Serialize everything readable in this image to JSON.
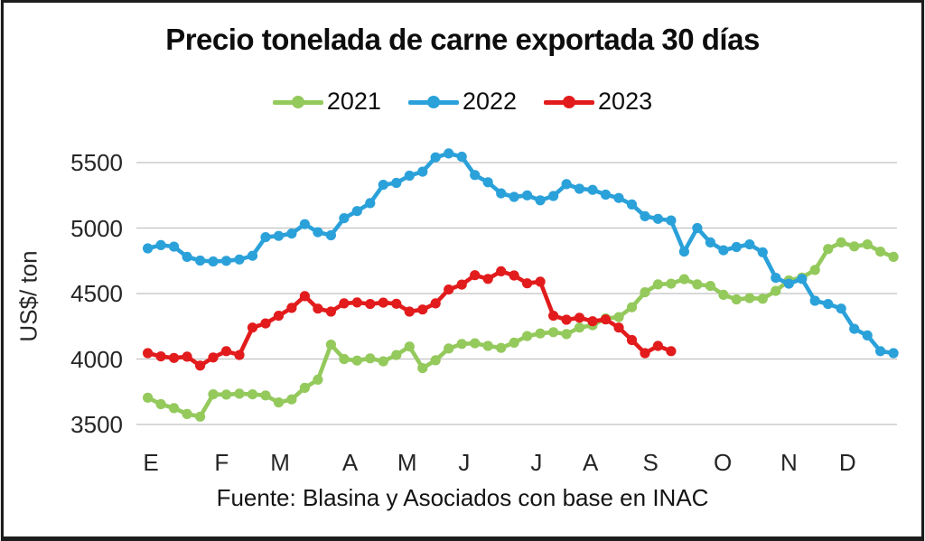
{
  "chart_data": {
    "type": "line",
    "title": "Precio tonelada de carne exportada 30 días",
    "ylabel": "US$/ ton",
    "ylim": [
      3500,
      5500
    ],
    "y_ticks": [
      3500,
      4000,
      4500,
      5000,
      5500
    ],
    "categories": [
      "E",
      "F",
      "M",
      "A",
      "M",
      "J",
      "J",
      "A",
      "S",
      "O",
      "N",
      "D"
    ],
    "x_unit": "semana",
    "grid": "horizontal",
    "legend_position": "top",
    "source_note": "Fuente: Blasina y Asociados con base en INAC",
    "series": [
      {
        "name": "2021",
        "color": "#94C95C",
        "values": [
          3705,
          3655,
          3625,
          3580,
          3560,
          3730,
          3728,
          3735,
          3730,
          3722,
          3668,
          3692,
          3780,
          3842,
          4110,
          4000,
          3988,
          4005,
          3982,
          4030,
          4095,
          3930,
          3990,
          4080,
          4115,
          4120,
          4100,
          4085,
          4125,
          4175,
          4195,
          4205,
          4190,
          4240,
          4258,
          4310,
          4320,
          4395,
          4510,
          4570,
          4575,
          4610,
          4570,
          4558,
          4490,
          4455,
          4465,
          4460,
          4520,
          4600,
          4622,
          4680,
          4840,
          4890,
          4860,
          4875,
          4820,
          4780
        ]
      },
      {
        "name": "2022",
        "color": "#2BA1DA",
        "values": [
          4845,
          4870,
          4858,
          4780,
          4752,
          4745,
          4750,
          4760,
          4788,
          4930,
          4940,
          4958,
          5030,
          4968,
          4945,
          5075,
          5130,
          5190,
          5330,
          5345,
          5400,
          5430,
          5540,
          5570,
          5545,
          5405,
          5350,
          5265,
          5238,
          5250,
          5212,
          5245,
          5335,
          5300,
          5292,
          5255,
          5230,
          5180,
          5090,
          5070,
          5058,
          4820,
          5000,
          4890,
          4830,
          4855,
          4875,
          4815,
          4620,
          4575,
          4612,
          4445,
          4420,
          4385,
          4230,
          4180,
          4060,
          4045
        ]
      },
      {
        "name": "2023",
        "color": "#E21B1C",
        "values": [
          4045,
          4020,
          4008,
          4018,
          3950,
          4012,
          4060,
          4030,
          4240,
          4272,
          4330,
          4390,
          4480,
          4385,
          4362,
          4425,
          4432,
          4420,
          4430,
          4422,
          4362,
          4378,
          4425,
          4530,
          4568,
          4640,
          4612,
          4670,
          4638,
          4578,
          4590,
          4330,
          4300,
          4315,
          4288,
          4302,
          4240,
          4145,
          4045,
          4100,
          4060
        ]
      }
    ]
  }
}
